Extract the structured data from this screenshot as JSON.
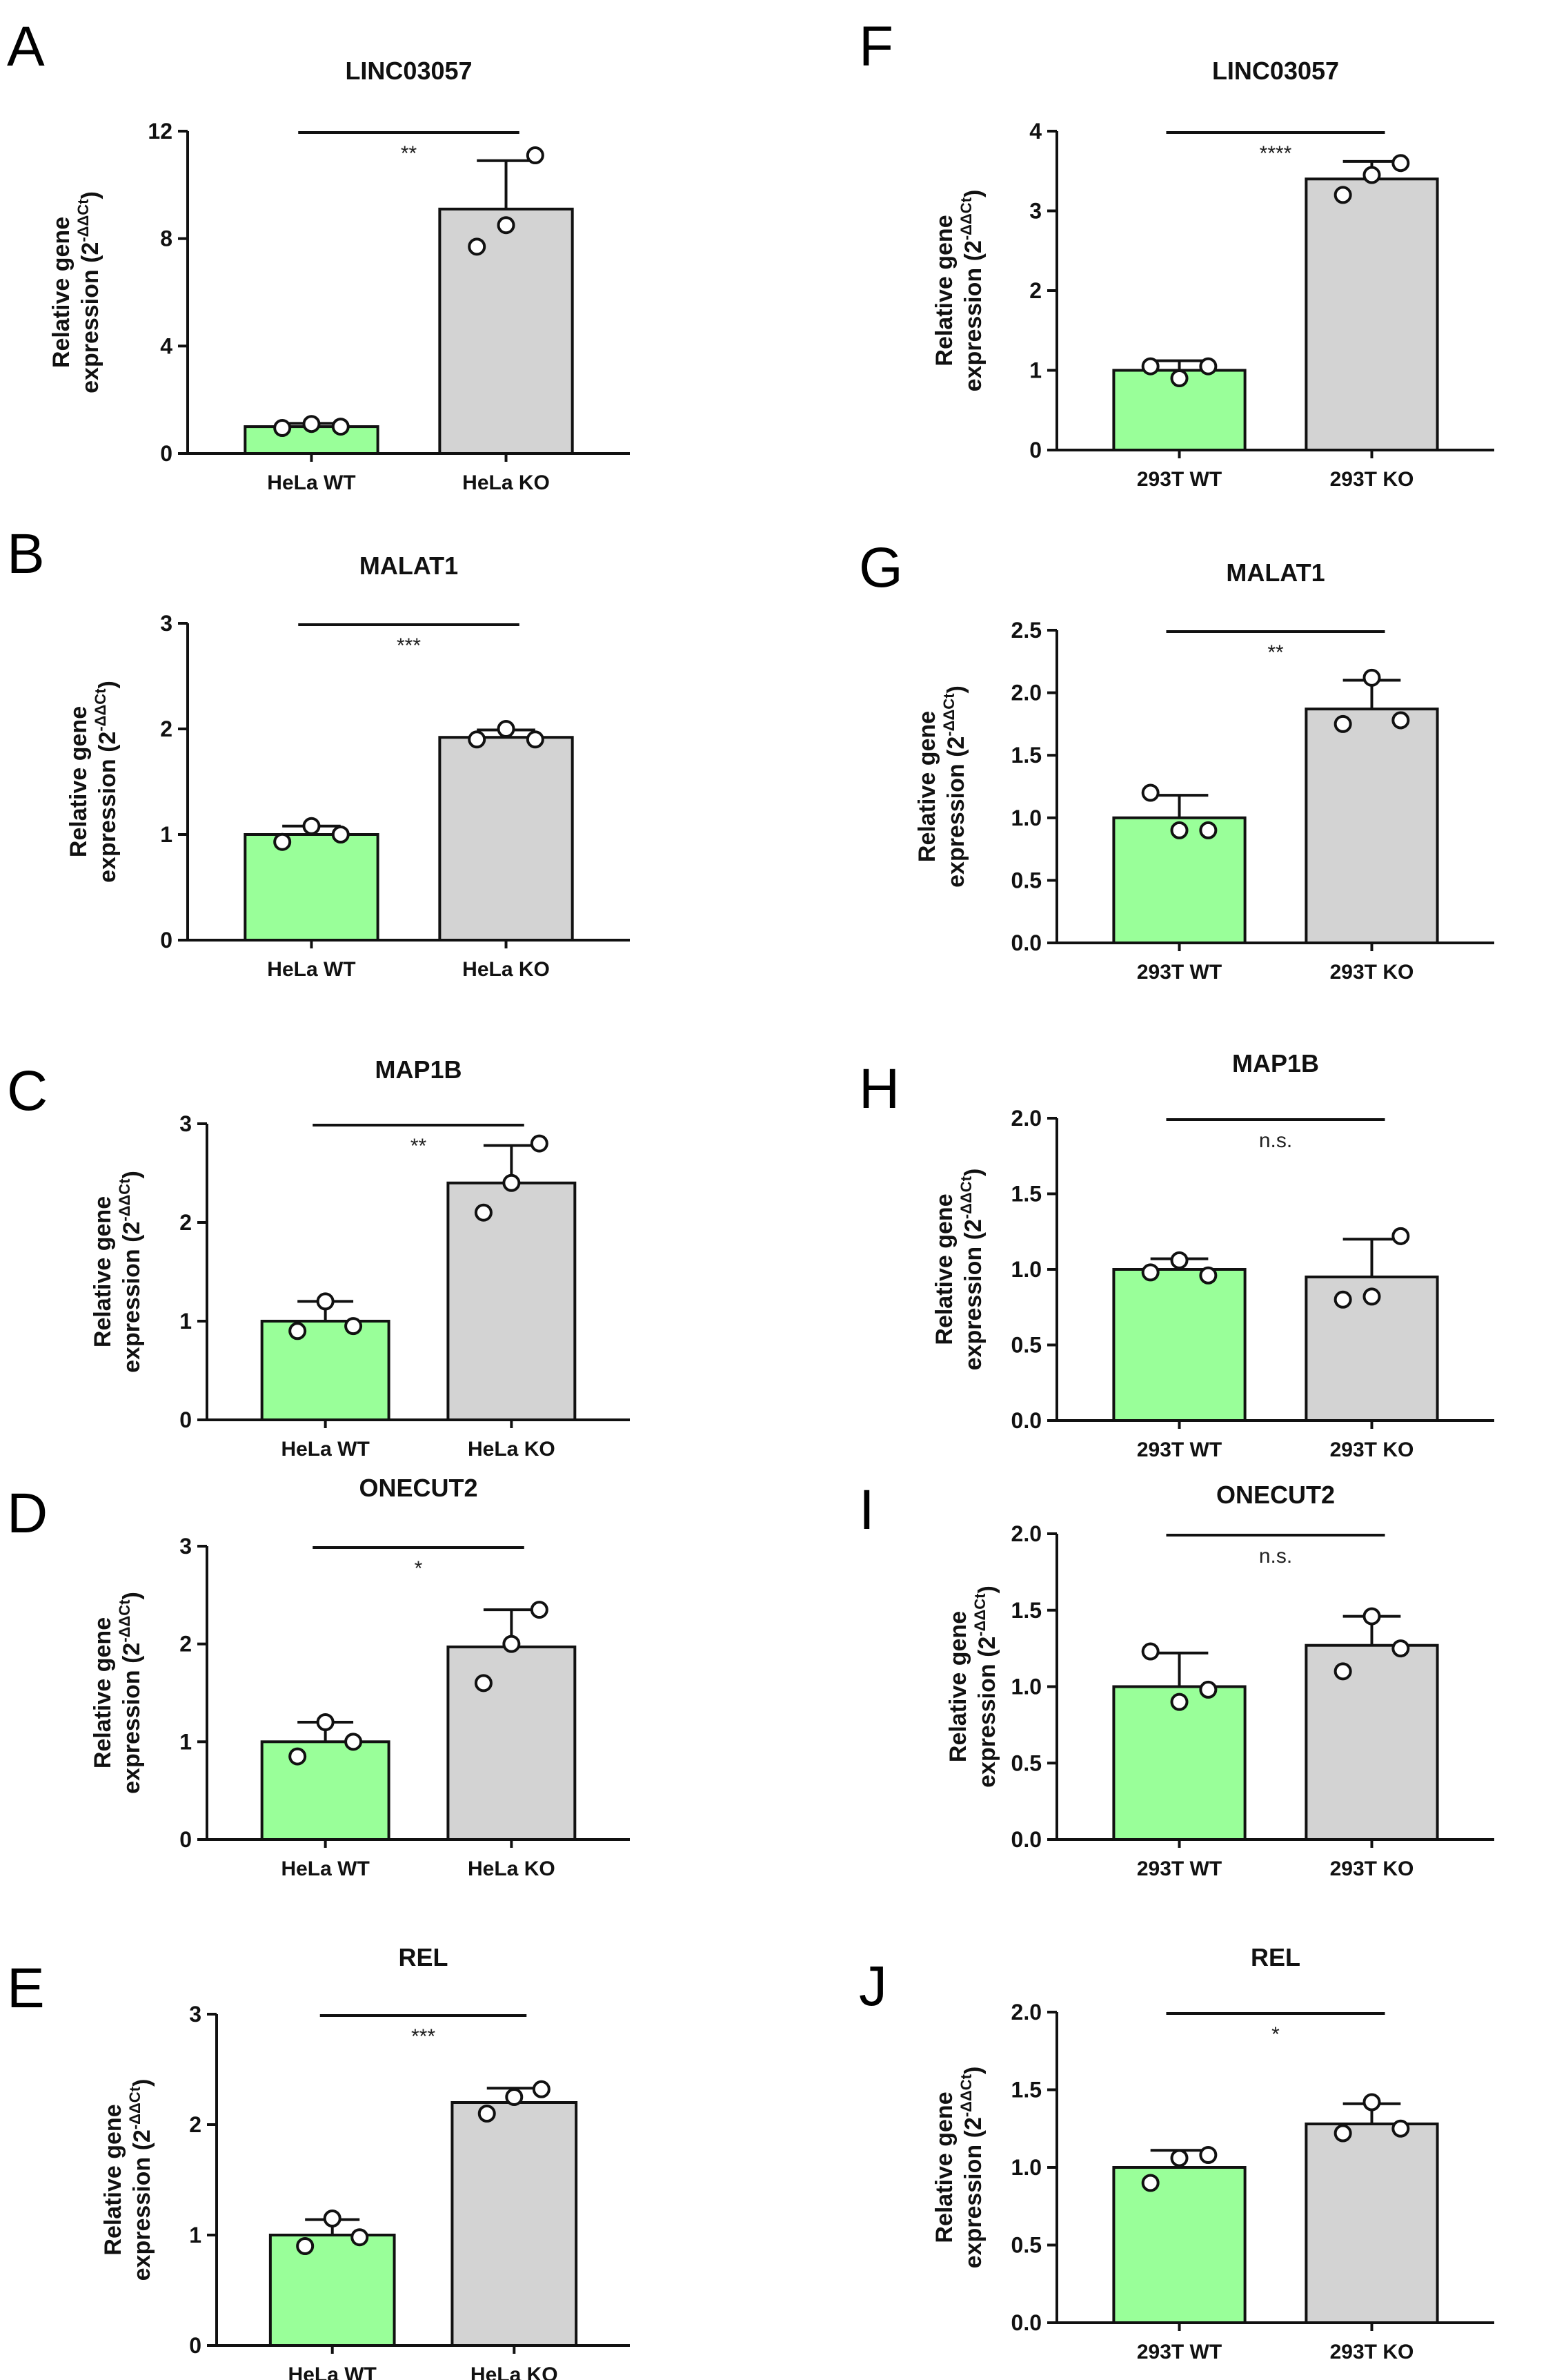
{
  "colors": {
    "wt": "#99ff99",
    "ko": "#d3d3d3",
    "stroke": "#111111"
  },
  "ylabel_line1": "Relative gene",
  "ylabel_line2": "expression (2",
  "ylabel_exp": "-ΔΔCt",
  "ylabel_close": ")",
  "chart_data": [
    {
      "letter": "A",
      "type": "bar",
      "title": "LINC03057",
      "categories": [
        "HeLa WT",
        "HeLa KO"
      ],
      "values": [
        1.0,
        9.1
      ],
      "errors": [
        0.12,
        1.8
      ],
      "points": [
        [
          0.95,
          1.1,
          1.0
        ],
        [
          7.7,
          8.5,
          11.1
        ]
      ],
      "ylim": [
        0,
        12
      ],
      "yticks": [
        "0",
        "4",
        "8",
        "12"
      ],
      "significance": "**"
    },
    {
      "letter": "B",
      "type": "bar",
      "title": "MALAT1",
      "categories": [
        "HeLa WT",
        "HeLa KO"
      ],
      "values": [
        1.0,
        1.92
      ],
      "errors": [
        0.08,
        0.07
      ],
      "points": [
        [
          0.93,
          1.08,
          1.0
        ],
        [
          1.9,
          2.0,
          1.9
        ]
      ],
      "ylim": [
        0,
        3
      ],
      "yticks": [
        "0",
        "1",
        "2",
        "3"
      ],
      "significance": "***"
    },
    {
      "letter": "C",
      "type": "bar",
      "title": "MAP1B",
      "categories": [
        "HeLa WT",
        "HeLa KO"
      ],
      "values": [
        1.0,
        2.4
      ],
      "errors": [
        0.2,
        0.38
      ],
      "points": [
        [
          0.9,
          1.2,
          0.95
        ],
        [
          2.1,
          2.4,
          2.8
        ]
      ],
      "ylim": [
        0,
        3
      ],
      "yticks": [
        "0",
        "1",
        "2",
        "3"
      ],
      "significance": "**"
    },
    {
      "letter": "D",
      "type": "bar",
      "title": "ONECUT2",
      "categories": [
        "HeLa WT",
        "HeLa KO"
      ],
      "values": [
        1.0,
        1.97
      ],
      "errors": [
        0.2,
        0.38
      ],
      "points": [
        [
          0.85,
          1.2,
          1.0
        ],
        [
          1.6,
          2.0,
          2.35
        ]
      ],
      "ylim": [
        0,
        3
      ],
      "yticks": [
        "0",
        "1",
        "2",
        "3"
      ],
      "significance": "*"
    },
    {
      "letter": "E",
      "type": "bar",
      "title": "REL",
      "categories": [
        "HeLa WT",
        "HeLa KO"
      ],
      "values": [
        1.0,
        2.2
      ],
      "errors": [
        0.14,
        0.13
      ],
      "points": [
        [
          0.9,
          1.15,
          0.98
        ],
        [
          2.1,
          2.25,
          2.32
        ]
      ],
      "ylim": [
        0,
        3
      ],
      "yticks": [
        "0",
        "1",
        "2",
        "3"
      ],
      "significance": "***"
    },
    {
      "letter": "F",
      "type": "bar",
      "title": "LINC03057",
      "categories": [
        "293T WT",
        "293T KO"
      ],
      "values": [
        1.0,
        3.4
      ],
      "errors": [
        0.12,
        0.22
      ],
      "points": [
        [
          1.05,
          0.9,
          1.05
        ],
        [
          3.2,
          3.45,
          3.6
        ]
      ],
      "ylim": [
        0,
        4
      ],
      "yticks": [
        "0",
        "1",
        "2",
        "3",
        "4"
      ],
      "significance": "****"
    },
    {
      "letter": "G",
      "type": "bar",
      "title": "MALAT1",
      "categories": [
        "293T WT",
        "293T KO"
      ],
      "values": [
        1.0,
        1.87
      ],
      "errors": [
        0.18,
        0.23
      ],
      "points": [
        [
          1.2,
          0.9,
          0.9
        ],
        [
          1.75,
          2.12,
          1.78
        ]
      ],
      "ylim": [
        0,
        2.5
      ],
      "yticks": [
        "0.0",
        "0.5",
        "1.0",
        "1.5",
        "2.0",
        "2.5"
      ],
      "significance": "**"
    },
    {
      "letter": "H",
      "type": "bar",
      "title": "MAP1B",
      "categories": [
        "293T WT",
        "293T KO"
      ],
      "values": [
        1.0,
        0.95
      ],
      "errors": [
        0.07,
        0.25
      ],
      "points": [
        [
          0.98,
          1.06,
          0.96
        ],
        [
          0.8,
          0.82,
          1.22
        ]
      ],
      "ylim": [
        0,
        2.0
      ],
      "yticks": [
        "0.0",
        "0.5",
        "1.0",
        "1.5",
        "2.0"
      ],
      "significance": "n.s."
    },
    {
      "letter": "I",
      "type": "bar",
      "title": "ONECUT2",
      "categories": [
        "293T WT",
        "293T KO"
      ],
      "values": [
        1.0,
        1.27
      ],
      "errors": [
        0.22,
        0.19
      ],
      "points": [
        [
          1.23,
          0.9,
          0.98
        ],
        [
          1.1,
          1.46,
          1.25
        ]
      ],
      "ylim": [
        0,
        2.0
      ],
      "yticks": [
        "0.0",
        "0.5",
        "1.0",
        "1.5",
        "2.0"
      ],
      "significance": "n.s."
    },
    {
      "letter": "J",
      "type": "bar",
      "title": "REL",
      "categories": [
        "293T WT",
        "293T KO"
      ],
      "values": [
        1.0,
        1.28
      ],
      "errors": [
        0.11,
        0.13
      ],
      "points": [
        [
          0.9,
          1.06,
          1.08
        ],
        [
          1.22,
          1.42,
          1.25
        ]
      ],
      "ylim": [
        0,
        2.0
      ],
      "yticks": [
        "0.0",
        "0.5",
        "1.0",
        "1.5",
        "2.0"
      ],
      "significance": "*"
    }
  ]
}
